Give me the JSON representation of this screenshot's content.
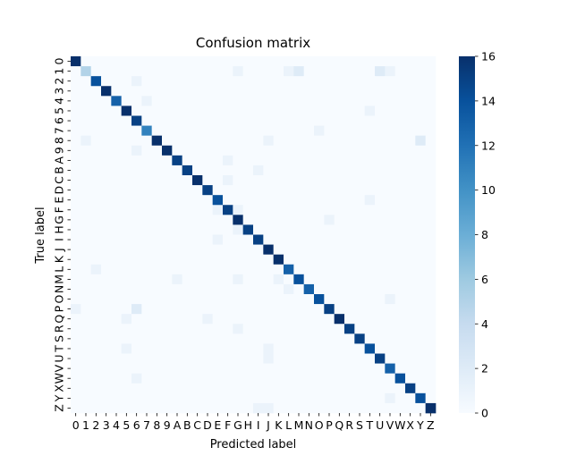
{
  "chart_data": {
    "type": "heatmap",
    "title": "Confusion matrix",
    "xlabel": "Predicted label",
    "ylabel": "True label",
    "labels": [
      "0",
      "1",
      "2",
      "3",
      "4",
      "5",
      "6",
      "7",
      "8",
      "9",
      "A",
      "B",
      "C",
      "D",
      "E",
      "F",
      "G",
      "H",
      "I",
      "J",
      "K",
      "L",
      "M",
      "N",
      "O",
      "P",
      "Q",
      "R",
      "S",
      "T",
      "U",
      "V",
      "W",
      "X",
      "Y",
      "Z"
    ],
    "vmin": 0,
    "vmax": 16,
    "colorbar_ticks": [
      0,
      2,
      4,
      6,
      8,
      10,
      12,
      14,
      16
    ],
    "colormap": [
      "#f7fbff",
      "#deebf7",
      "#c6dbef",
      "#9ecae1",
      "#6baed6",
      "#4292c6",
      "#2171b5",
      "#08519c",
      "#08306b"
    ],
    "diagonal": [
      16,
      5,
      14,
      16,
      13,
      16,
      15,
      11,
      16,
      16,
      15,
      15,
      16,
      15,
      14,
      15,
      16,
      15,
      15,
      16,
      16,
      13,
      14,
      13,
      14,
      15,
      16,
      15,
      15,
      14,
      15,
      13,
      14,
      15,
      14,
      16
    ],
    "off_diagonal": [
      [
        1,
        16,
        1
      ],
      [
        1,
        21,
        1
      ],
      [
        1,
        22,
        2
      ],
      [
        1,
        30,
        2
      ],
      [
        1,
        31,
        1
      ],
      [
        2,
        6,
        1
      ],
      [
        4,
        7,
        1
      ],
      [
        5,
        29,
        1
      ],
      [
        7,
        24,
        1
      ],
      [
        8,
        1,
        1
      ],
      [
        8,
        19,
        1
      ],
      [
        8,
        34,
        2
      ],
      [
        9,
        6,
        1
      ],
      [
        10,
        15,
        1
      ],
      [
        11,
        18,
        1
      ],
      [
        12,
        15,
        1
      ],
      [
        14,
        29,
        1
      ],
      [
        15,
        14,
        1
      ],
      [
        15,
        16,
        1
      ],
      [
        16,
        25,
        1
      ],
      [
        17,
        16,
        1
      ],
      [
        18,
        14,
        1
      ],
      [
        21,
        2,
        1
      ],
      [
        22,
        10,
        1
      ],
      [
        22,
        16,
        1
      ],
      [
        22,
        20,
        1
      ],
      [
        23,
        21,
        1
      ],
      [
        24,
        31,
        1
      ],
      [
        25,
        0,
        1
      ],
      [
        25,
        6,
        2
      ],
      [
        26,
        5,
        1
      ],
      [
        26,
        13,
        1
      ],
      [
        27,
        16,
        1
      ],
      [
        29,
        5,
        1
      ],
      [
        29,
        19,
        1
      ],
      [
        30,
        19,
        1
      ],
      [
        32,
        6,
        1
      ],
      [
        34,
        31,
        1
      ],
      [
        35,
        18,
        1
      ],
      [
        35,
        19,
        1
      ]
    ]
  }
}
